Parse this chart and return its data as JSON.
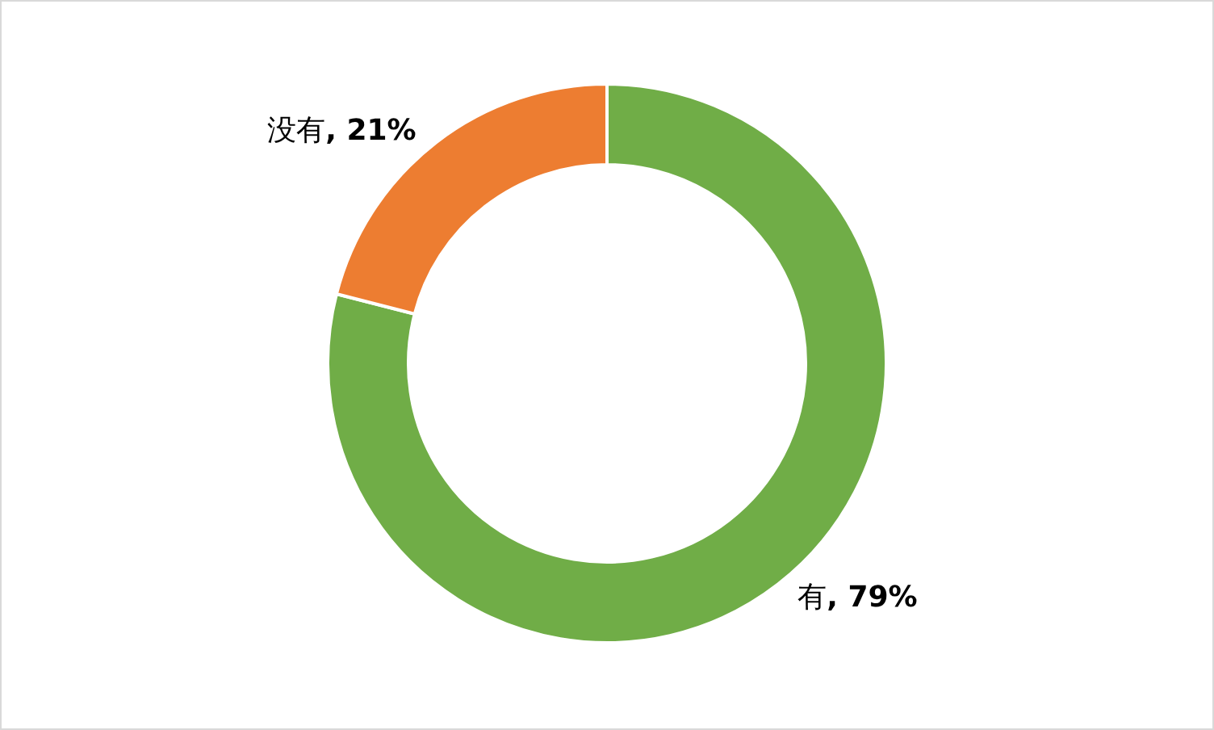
{
  "chart_data": {
    "type": "donut",
    "categories": [
      "有",
      "没有"
    ],
    "values": [
      79,
      21
    ],
    "colors": [
      "#70ad47",
      "#ed7d31"
    ],
    "value_labels": [
      ", 79%",
      ", 21%"
    ],
    "legend": false
  }
}
